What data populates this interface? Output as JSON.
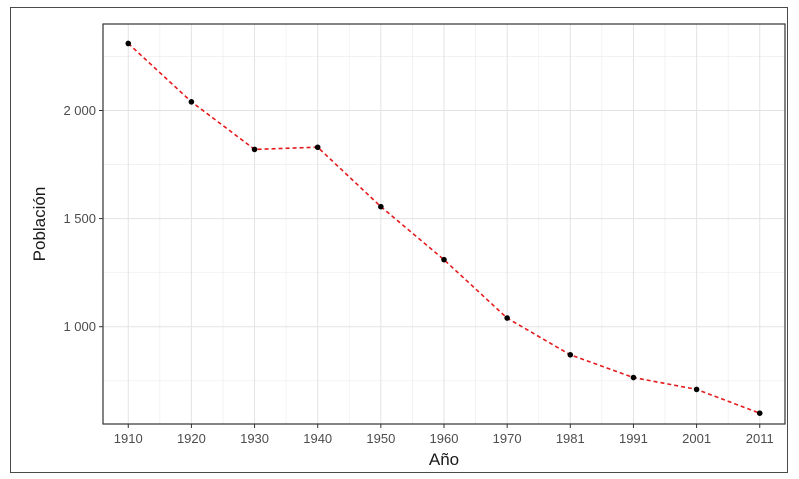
{
  "chart_data": {
    "type": "line",
    "title": "",
    "xlabel": "Año",
    "ylabel": "Población",
    "x": [
      "1910",
      "1920",
      "1930",
      "1940",
      "1950",
      "1960",
      "1970",
      "1981",
      "1991",
      "2001",
      "2011"
    ],
    "series": [
      {
        "values": [
          2310,
          2040,
          1820,
          1830,
          1555,
          1310,
          1040,
          870,
          765,
          710,
          600
        ]
      }
    ],
    "ylim": [
      550,
      2400
    ],
    "yticks": [
      1000,
      1500,
      2000
    ],
    "ytick_labels": [
      "1 000",
      "1 500",
      "2 000"
    ],
    "grid": true,
    "line_color": "#e41a1c",
    "line_style": "dashed",
    "point_color": "#000000",
    "legend": "none"
  }
}
